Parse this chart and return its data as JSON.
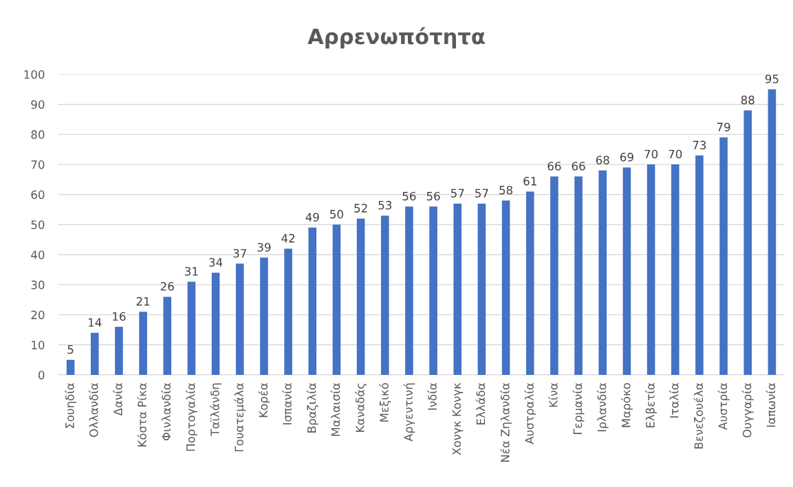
{
  "chart_data": {
    "type": "bar",
    "title": "Αρρενωπότητα",
    "categories": [
      "Σουηδία",
      "Ολλανδία",
      "Δανία",
      "Κόστα Ρίκα",
      "Φινλανδία",
      "Πορτογαλία",
      "Ταϊλάνδη",
      "Γουατεμάλα",
      "Κορέα",
      "Ισπανία",
      "Βραζιλία",
      "Μαλαισία",
      "Καναδάς",
      "Μεξικό",
      "Αργεντινή",
      "Ινδία",
      "Χονγκ Κονγκ",
      "Ελλάδα",
      "Νέα Ζηλανδία",
      "Αυστραλία",
      "Κίνα",
      "Γερμανία",
      "Ιρλανδία",
      "Μαρόκο",
      "Ελβετία",
      "Ιταλία",
      "Βενεζουέλα",
      "Αυστρία",
      "Ουγγαρία",
      "Ιαπωνία"
    ],
    "values": [
      5,
      14,
      16,
      21,
      26,
      31,
      34,
      37,
      39,
      42,
      49,
      50,
      52,
      53,
      56,
      56,
      57,
      57,
      58,
      61,
      66,
      66,
      68,
      69,
      70,
      70,
      73,
      79,
      88,
      95
    ],
    "color": "#4472c4",
    "ylim": [
      0,
      100
    ],
    "yticks": [
      0,
      10,
      20,
      30,
      40,
      50,
      60,
      70,
      80,
      90,
      100
    ],
    "grid": "y",
    "data_labels": true,
    "legend": false
  }
}
